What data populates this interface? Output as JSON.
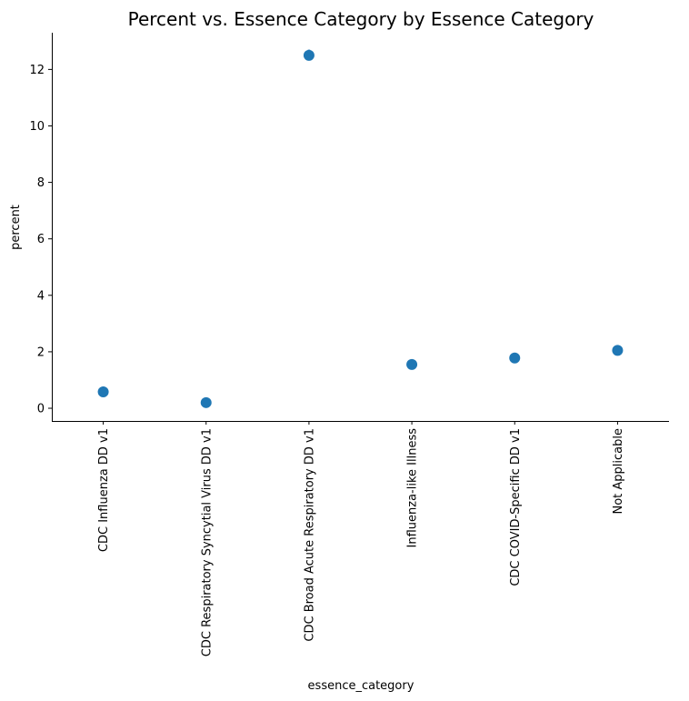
{
  "chart_data": {
    "type": "scatter",
    "title": "Percent vs. Essence Category by Essence Category",
    "xlabel": "essence_category",
    "ylabel": "percent",
    "categories": [
      "CDC Influenza DD v1",
      "CDC Respiratory Syncytial Virus DD v1",
      "CDC Broad Acute Respiratory DD v1",
      "Influenza-like Illness",
      "CDC COVID-Specific DD v1",
      "Not Applicable"
    ],
    "values": [
      0.58,
      0.2,
      12.5,
      1.55,
      1.78,
      2.05
    ],
    "error_low": [
      0.53,
      0.17,
      12.36,
      1.5,
      1.74,
      1.93
    ],
    "error_high": [
      0.63,
      0.23,
      12.7,
      1.6,
      1.83,
      2.22
    ],
    "yticks": [
      0,
      2,
      4,
      6,
      8,
      10,
      12
    ],
    "ylim": [
      -0.45,
      13.3
    ],
    "grid": false,
    "legend": "none",
    "color": "#1f77b4"
  }
}
